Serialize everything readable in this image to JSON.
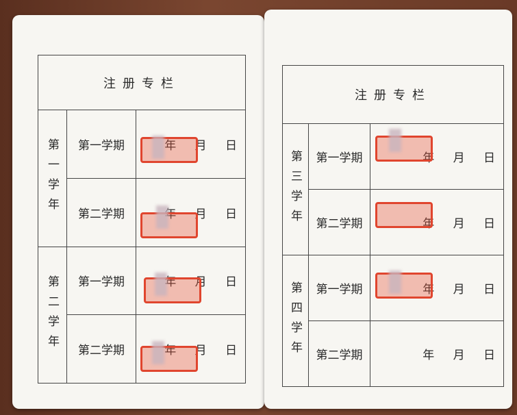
{
  "left_page": {
    "title": "注册专栏",
    "years": [
      {
        "label": "第一学年",
        "terms": [
          {
            "name": "第一学期",
            "date": "年 月 日"
          },
          {
            "name": "第二学期",
            "date": "年 月 日"
          }
        ]
      },
      {
        "label": "第二学年",
        "terms": [
          {
            "name": "第一学期",
            "date": "年 月 日"
          },
          {
            "name": "第二学期",
            "date": "年 月 日"
          }
        ]
      }
    ]
  },
  "right_page": {
    "title": "注册专栏",
    "years": [
      {
        "label": "第三学年",
        "terms": [
          {
            "name": "第一学期",
            "date": "年 月 日"
          },
          {
            "name": "第二学期",
            "date": "年 月 日"
          }
        ]
      },
      {
        "label": "第四学年",
        "terms": [
          {
            "name": "第一学期",
            "date": "年 月 日"
          },
          {
            "name": "第二学期",
            "date": "年 月 日"
          }
        ]
      }
    ]
  }
}
